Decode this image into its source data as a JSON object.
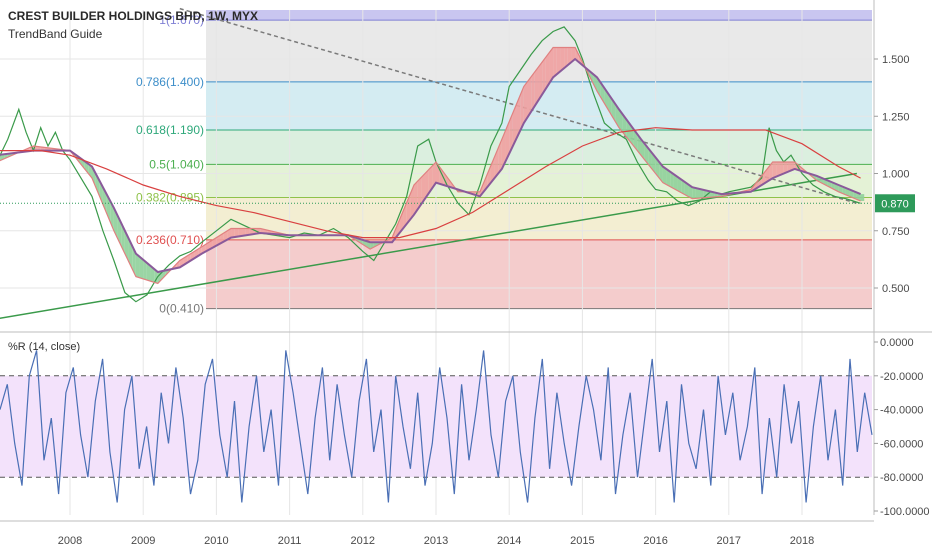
{
  "header": {
    "title": "CREST BUILDER HOLDINGS BHD, 1W, MYX",
    "indicator": "TrendBand Guide"
  },
  "chart_data": [
    {
      "type": "line",
      "panel": "price",
      "title": "CREST BUILDER HOLDINGS BHD, 1W, MYX",
      "x_ticks": [
        "2008",
        "2009",
        "2010",
        "2011",
        "2012",
        "2013",
        "2014",
        "2015",
        "2016",
        "2017",
        "2018"
      ],
      "y_ticks": [
        "0.500",
        "0.750",
        "1.000",
        "1.250",
        "1.500"
      ],
      "ylim": [
        0.36,
        1.72
      ],
      "last_price": "0.870",
      "last_price_value": 0.87,
      "fib_levels": [
        {
          "ratio_label": "0(0.410)",
          "value": 0.41,
          "color": "#787878"
        },
        {
          "ratio_label": "0.236(0.710)",
          "value": 0.71,
          "color": "#e05050"
        },
        {
          "ratio_label": "0.382(0.895)",
          "value": 0.895,
          "color": "#8fc24a"
        },
        {
          "ratio_label": "0.5(1.040)",
          "value": 1.04,
          "color": "#4caf50"
        },
        {
          "ratio_label": "0.618(1.190)",
          "value": 1.19,
          "color": "#2ea87a"
        },
        {
          "ratio_label": "0.786(1.400)",
          "value": 1.4,
          "color": "#3d8ec9"
        },
        {
          "ratio_label": "1(1.670)",
          "value": 1.67,
          "color": "#7f7fd4"
        }
      ],
      "series": [
        {
          "kind": "price",
          "color": "#3a9a4a",
          "points": [
            [
              2007.0,
              1.05
            ],
            [
              2007.15,
              1.15
            ],
            [
              2007.3,
              1.28
            ],
            [
              2007.4,
              1.18
            ],
            [
              2007.5,
              1.1
            ],
            [
              2007.6,
              1.2
            ],
            [
              2007.7,
              1.12
            ],
            [
              2007.8,
              1.18
            ],
            [
              2007.9,
              1.1
            ],
            [
              2008.0,
              1.06
            ],
            [
              2008.15,
              0.98
            ],
            [
              2008.3,
              0.9
            ],
            [
              2008.45,
              0.75
            ],
            [
              2008.6,
              0.62
            ],
            [
              2008.75,
              0.48
            ],
            [
              2008.9,
              0.44
            ],
            [
              2009.05,
              0.47
            ],
            [
              2009.2,
              0.55
            ],
            [
              2009.35,
              0.6
            ],
            [
              2009.5,
              0.64
            ],
            [
              2009.65,
              0.66
            ],
            [
              2009.8,
              0.7
            ],
            [
              2010.0,
              0.75
            ],
            [
              2010.2,
              0.8
            ],
            [
              2010.4,
              0.77
            ],
            [
              2010.6,
              0.74
            ],
            [
              2010.8,
              0.73
            ],
            [
              2011.0,
              0.72
            ],
            [
              2011.2,
              0.74
            ],
            [
              2011.4,
              0.73
            ],
            [
              2011.6,
              0.76
            ],
            [
              2011.8,
              0.72
            ],
            [
              2012.0,
              0.66
            ],
            [
              2012.15,
              0.62
            ],
            [
              2012.3,
              0.7
            ],
            [
              2012.45,
              0.78
            ],
            [
              2012.6,
              0.9
            ],
            [
              2012.75,
              1.12
            ],
            [
              2012.9,
              1.15
            ],
            [
              2013.0,
              1.05
            ],
            [
              2013.15,
              0.95
            ],
            [
              2013.3,
              0.87
            ],
            [
              2013.45,
              0.82
            ],
            [
              2013.6,
              0.95
            ],
            [
              2013.75,
              1.12
            ],
            [
              2013.9,
              1.22
            ],
            [
              2014.0,
              1.38
            ],
            [
              2014.15,
              1.45
            ],
            [
              2014.3,
              1.52
            ],
            [
              2014.45,
              1.58
            ],
            [
              2014.6,
              1.62
            ],
            [
              2014.75,
              1.64
            ],
            [
              2014.9,
              1.58
            ],
            [
              2015.0,
              1.5
            ],
            [
              2015.15,
              1.35
            ],
            [
              2015.3,
              1.22
            ],
            [
              2015.45,
              1.18
            ],
            [
              2015.6,
              1.15
            ],
            [
              2015.75,
              1.05
            ],
            [
              2015.9,
              0.97
            ],
            [
              2016.0,
              0.93
            ],
            [
              2016.15,
              0.92
            ],
            [
              2016.3,
              0.88
            ],
            [
              2016.45,
              0.86
            ],
            [
              2016.6,
              0.88
            ],
            [
              2016.75,
              0.92
            ],
            [
              2016.9,
              0.91
            ],
            [
              2017.0,
              0.92
            ],
            [
              2017.15,
              0.93
            ],
            [
              2017.3,
              0.94
            ],
            [
              2017.45,
              0.98
            ],
            [
              2017.55,
              1.2
            ],
            [
              2017.65,
              1.1
            ],
            [
              2017.75,
              1.05
            ],
            [
              2017.85,
              1.08
            ],
            [
              2018.0,
              1.0
            ],
            [
              2018.15,
              0.95
            ],
            [
              2018.3,
              0.92
            ],
            [
              2018.45,
              0.9
            ],
            [
              2018.6,
              0.89
            ],
            [
              2018.7,
              0.88
            ],
            [
              2018.8,
              0.87
            ]
          ]
        },
        {
          "kind": "ema-fast",
          "color": "#e08080",
          "points": [
            [
              2007.0,
              1.05
            ],
            [
              2007.5,
              1.12
            ],
            [
              2008.0,
              1.1
            ],
            [
              2008.3,
              0.98
            ],
            [
              2008.6,
              0.75
            ],
            [
              2008.9,
              0.55
            ],
            [
              2009.2,
              0.52
            ],
            [
              2009.5,
              0.62
            ],
            [
              2009.8,
              0.68
            ],
            [
              2010.2,
              0.76
            ],
            [
              2010.6,
              0.76
            ],
            [
              2011.0,
              0.73
            ],
            [
              2011.4,
              0.73
            ],
            [
              2011.8,
              0.73
            ],
            [
              2012.1,
              0.67
            ],
            [
              2012.4,
              0.72
            ],
            [
              2012.7,
              0.95
            ],
            [
              2013.0,
              1.05
            ],
            [
              2013.3,
              0.92
            ],
            [
              2013.6,
              0.92
            ],
            [
              2013.9,
              1.15
            ],
            [
              2014.2,
              1.38
            ],
            [
              2014.6,
              1.55
            ],
            [
              2014.9,
              1.55
            ],
            [
              2015.2,
              1.36
            ],
            [
              2015.5,
              1.2
            ],
            [
              2015.8,
              1.08
            ],
            [
              2016.1,
              0.96
            ],
            [
              2016.5,
              0.89
            ],
            [
              2016.9,
              0.9
            ],
            [
              2017.3,
              0.93
            ],
            [
              2017.6,
              1.05
            ],
            [
              2017.9,
              1.05
            ],
            [
              2018.2,
              0.97
            ],
            [
              2018.5,
              0.92
            ],
            [
              2018.8,
              0.88
            ]
          ]
        },
        {
          "kind": "ema-slow",
          "color": "#8a5a9a",
          "points": [
            [
              2007.0,
              1.08
            ],
            [
              2007.5,
              1.1
            ],
            [
              2008.0,
              1.1
            ],
            [
              2008.3,
              1.03
            ],
            [
              2008.6,
              0.85
            ],
            [
              2008.9,
              0.65
            ],
            [
              2009.2,
              0.57
            ],
            [
              2009.5,
              0.59
            ],
            [
              2009.8,
              0.65
            ],
            [
              2010.2,
              0.72
            ],
            [
              2010.6,
              0.74
            ],
            [
              2011.0,
              0.73
            ],
            [
              2011.4,
              0.73
            ],
            [
              2011.8,
              0.73
            ],
            [
              2012.1,
              0.7
            ],
            [
              2012.4,
              0.7
            ],
            [
              2012.7,
              0.82
            ],
            [
              2013.0,
              0.96
            ],
            [
              2013.3,
              0.93
            ],
            [
              2013.6,
              0.9
            ],
            [
              2013.9,
              1.02
            ],
            [
              2014.2,
              1.22
            ],
            [
              2014.6,
              1.42
            ],
            [
              2014.9,
              1.5
            ],
            [
              2015.2,
              1.42
            ],
            [
              2015.5,
              1.28
            ],
            [
              2015.8,
              1.15
            ],
            [
              2016.1,
              1.03
            ],
            [
              2016.5,
              0.94
            ],
            [
              2016.9,
              0.91
            ],
            [
              2017.3,
              0.92
            ],
            [
              2017.6,
              0.98
            ],
            [
              2017.9,
              1.02
            ],
            [
              2018.2,
              0.99
            ],
            [
              2018.5,
              0.95
            ],
            [
              2018.8,
              0.91
            ]
          ]
        },
        {
          "kind": "ma-long",
          "color": "#d94040",
          "points": [
            [
              2007.0,
              1.1
            ],
            [
              2007.6,
              1.1
            ],
            [
              2008.0,
              1.08
            ],
            [
              2008.5,
              1.02
            ],
            [
              2009.0,
              0.95
            ],
            [
              2009.5,
              0.9
            ],
            [
              2010.0,
              0.86
            ],
            [
              2010.5,
              0.83
            ],
            [
              2011.0,
              0.79
            ],
            [
              2011.5,
              0.75
            ],
            [
              2012.0,
              0.72
            ],
            [
              2012.5,
              0.72
            ],
            [
              2013.0,
              0.76
            ],
            [
              2013.5,
              0.83
            ],
            [
              2014.0,
              0.93
            ],
            [
              2014.5,
              1.03
            ],
            [
              2015.0,
              1.12
            ],
            [
              2015.5,
              1.18
            ],
            [
              2016.0,
              1.2
            ],
            [
              2016.5,
              1.19
            ],
            [
              2017.0,
              1.19
            ],
            [
              2017.5,
              1.19
            ],
            [
              2018.0,
              1.13
            ],
            [
              2018.5,
              1.03
            ],
            [
              2018.8,
              0.98
            ]
          ]
        }
      ],
      "trendline_up": {
        "color": "#3a9a4a",
        "points": [
          [
            2006.9,
            0.36
          ],
          [
            2018.75,
            1.0
          ]
        ]
      },
      "trendline_down": {
        "color": "#7a7a7a",
        "points": [
          [
            2009.5,
            1.72
          ],
          [
            2018.75,
            0.87
          ]
        ]
      }
    },
    {
      "type": "line",
      "panel": "oscillator",
      "title": "%R (14, close)",
      "y_ticks": [
        "0.0000",
        "-20.0000",
        "-40.0000",
        "-60.0000",
        "-80.0000",
        "-100.0000"
      ],
      "ylim": [
        -100,
        0
      ],
      "bands": [
        -20,
        -80
      ],
      "series": [
        {
          "name": "%R",
          "color": "#4a6fb5",
          "values": [
            -40,
            -25,
            -60,
            -85,
            -20,
            -5,
            -70,
            -45,
            -90,
            -30,
            -15,
            -55,
            -80,
            -35,
            -10,
            -65,
            -95,
            -40,
            -20,
            -75,
            -50,
            -85,
            -30,
            -60,
            -15,
            -45,
            -90,
            -70,
            -25,
            -10,
            -55,
            -80,
            -35,
            -95,
            -50,
            -20,
            -65,
            -40,
            -85,
            -5,
            -30,
            -60,
            -90,
            -45,
            -15,
            -70,
            -25,
            -55,
            -80,
            -35,
            -10,
            -65,
            -40,
            -95,
            -20,
            -50,
            -75,
            -30,
            -85,
            -60,
            -15,
            -45,
            -90,
            -25,
            -70,
            -40,
            -5,
            -55,
            -80,
            -35,
            -20,
            -65,
            -95,
            -45,
            -10,
            -75,
            -30,
            -60,
            -85,
            -50,
            -20,
            -40,
            -70,
            -15,
            -90,
            -55,
            -30,
            -80,
            -45,
            -10,
            -65,
            -35,
            -95,
            -25,
            -60,
            -75,
            -40,
            -85,
            -20,
            -55,
            -30,
            -70,
            -50,
            -15,
            -90,
            -45,
            -80,
            -25,
            -60,
            -35,
            -95,
            -50,
            -20,
            -70,
            -40,
            -85,
            -10,
            -65,
            -30,
            -55
          ]
        }
      ]
    }
  ]
}
